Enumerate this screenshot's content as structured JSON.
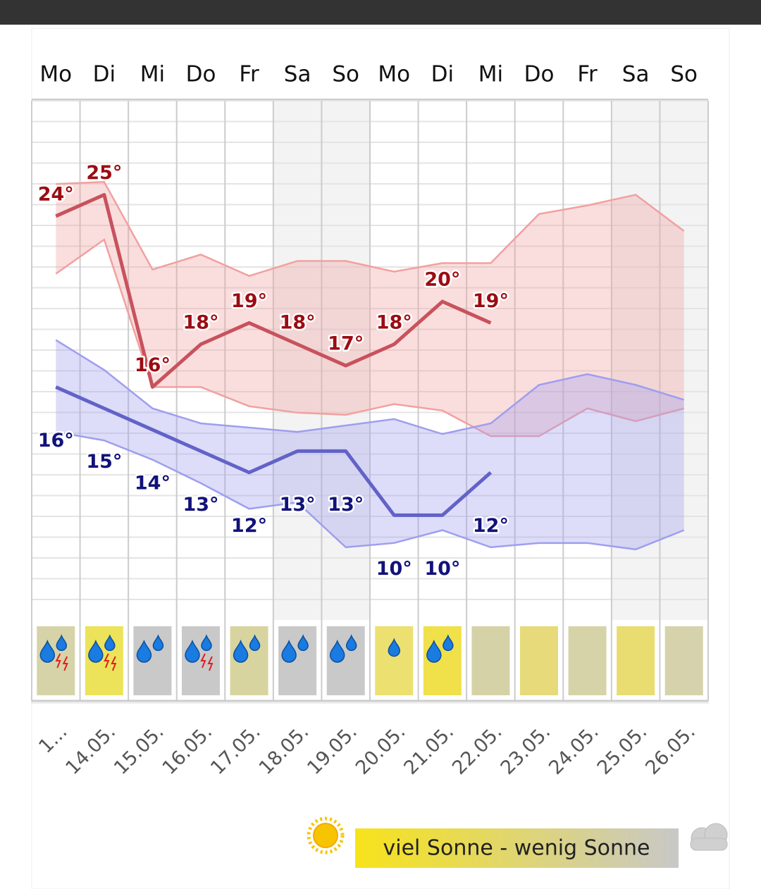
{
  "chart_data": {
    "type": "line",
    "categories": [
      "Mo",
      "Di",
      "Mi",
      "Do",
      "Fr",
      "Sa",
      "So",
      "Mo",
      "Di",
      "Mi",
      "Do",
      "Fr",
      "Sa",
      "So"
    ],
    "dates": [
      "1...",
      "14.05.",
      "15.05.",
      "16.05.",
      "17.05.",
      "18.05.",
      "19.05.",
      "20.05.",
      "21.05.",
      "22.05.",
      "23.05.",
      "24.05.",
      "25.05.",
      "26.05."
    ],
    "ylim": [
      5.1,
      29.4
    ],
    "series": [
      {
        "name": "max",
        "color": "#c8525c",
        "band_color": "#f2a0a0",
        "label_color": "#9b0c12",
        "values": [
          24,
          25,
          16,
          18,
          19,
          18,
          17,
          18,
          20,
          19,
          null,
          null,
          null,
          null
        ],
        "value_labels": [
          "24°",
          "25°",
          "16°",
          "18°",
          "19°",
          "18°",
          "17°",
          "18°",
          "20°",
          "19°",
          null,
          null,
          null,
          null
        ],
        "upper": [
          25.5,
          25.6,
          21.5,
          22.2,
          21.2,
          21.9,
          21.9,
          21.4,
          21.8,
          21.8,
          24.1,
          24.5,
          25,
          23.3
        ],
        "lower": [
          21.3,
          22.9,
          16,
          16,
          15.1,
          14.8,
          14.7,
          15.2,
          14.9,
          13.7,
          13.7,
          15,
          14.4,
          15
        ]
      },
      {
        "name": "min",
        "color": "#6262c8",
        "band_color": "#9e9ef0",
        "label_color": "#12127a",
        "values": [
          16,
          15,
          14,
          13,
          12,
          13,
          13,
          10,
          10,
          12,
          null,
          null,
          null,
          null
        ],
        "value_labels": [
          "16°",
          "15°",
          "14°",
          "13°",
          "12°",
          "13°",
          "13°",
          "10°",
          "10°",
          "12°",
          null,
          null,
          null,
          null
        ],
        "upper": [
          18.2,
          16.8,
          15,
          14.3,
          14.1,
          13.9,
          14.2,
          14.5,
          13.8,
          14.3,
          16.1,
          16.6,
          16.1,
          15.4
        ],
        "lower": [
          13.9,
          13.5,
          12.6,
          11.5,
          10.3,
          10.6,
          8.5,
          8.7,
          9.3,
          8.5,
          8.7,
          8.7,
          8.4,
          9.3
        ]
      }
    ],
    "sun_colors": [
      "#d6d3a8",
      "#ede35a",
      "#c9c9c9",
      "#c9c9c9",
      "#d8d4a0",
      "#c9c9c9",
      "#c9c9c9",
      "#ece070",
      "#f0e04a",
      "#d6d2a8",
      "#e6da7a",
      "#d6d3a8",
      "#e9dc70",
      "#d6d3ac"
    ],
    "legend": "viel Sonne - wenig Sonne"
  }
}
